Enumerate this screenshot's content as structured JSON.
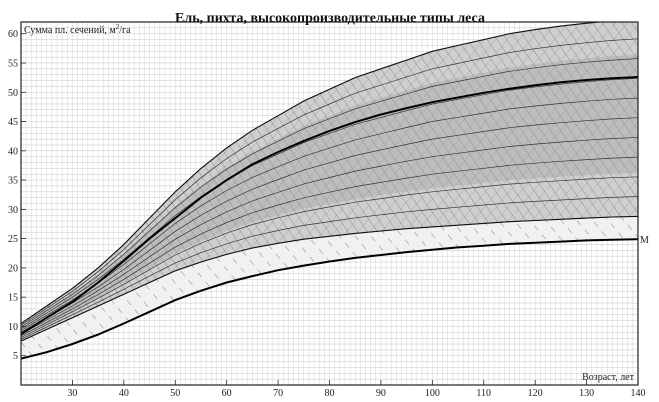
{
  "chart_data": {
    "type": "line",
    "title": "Ель, пихта, высокопроизводительные типы леса",
    "ylabel": "Сумма пл. сечений, м",
    "ylabel_sup": "2",
    "ylabel_suffix": "/га",
    "xlabel": "Возраст, лет",
    "xlim": [
      20,
      140
    ],
    "ylim": [
      0,
      62
    ],
    "x_ticks": [
      30,
      40,
      50,
      60,
      70,
      80,
      90,
      100,
      110,
      120,
      130,
      140
    ],
    "y_ticks": [
      5,
      10,
      15,
      20,
      25,
      30,
      35,
      40,
      45,
      50,
      55,
      60
    ],
    "x": [
      20,
      25,
      30,
      35,
      40,
      45,
      50,
      55,
      60,
      65,
      70,
      75,
      80,
      85,
      90,
      95,
      100,
      105,
      110,
      115,
      120,
      125,
      130,
      135,
      140
    ],
    "band_upper": [
      10.5,
      13.5,
      16.5,
      20,
      24,
      28.5,
      33,
      37,
      40.5,
      43.5,
      46,
      48.5,
      50.5,
      52.5,
      54,
      55.5,
      57,
      58,
      59,
      60,
      60.7,
      61.3,
      61.8,
      62.2,
      62.5
    ],
    "band_lower_shaded": [
      7.5,
      9.5,
      11.5,
      13.5,
      15.5,
      17.5,
      19.5,
      21,
      22.3,
      23.4,
      24.2,
      24.9,
      25.4,
      25.9,
      26.3,
      26.7,
      27,
      27.3,
      27.6,
      27.9,
      28.1,
      28.3,
      28.5,
      28.7,
      28.8
    ],
    "series": [
      {
        "values": [
          8.7,
          11.5,
          14.2,
          17.5,
          21.2,
          25,
          28.5,
          32,
          35,
          37.7,
          39.8,
          41.7,
          43.4,
          44.9,
          46.2,
          47.3,
          48.3,
          49.1,
          49.9,
          50.6,
          51.2,
          51.7,
          52.1,
          52.4,
          52.6
        ]
      },
      {
        "values": [
          4.5,
          5.6,
          7,
          8.6,
          10.5,
          12.5,
          14.5,
          16.1,
          17.5,
          18.6,
          19.6,
          20.4,
          21.1,
          21.7,
          22.2,
          22.7,
          23.1,
          23.5,
          23.8,
          24.1,
          24.3,
          24.5,
          24.7,
          24.8,
          24.9
        ],
        "label": "М"
      }
    ],
    "thin_curve_count": 10,
    "grid": true,
    "colors": {
      "ink": "#000000",
      "shade": "#9c9c9c",
      "shade_light": "#cfcfcf"
    }
  }
}
